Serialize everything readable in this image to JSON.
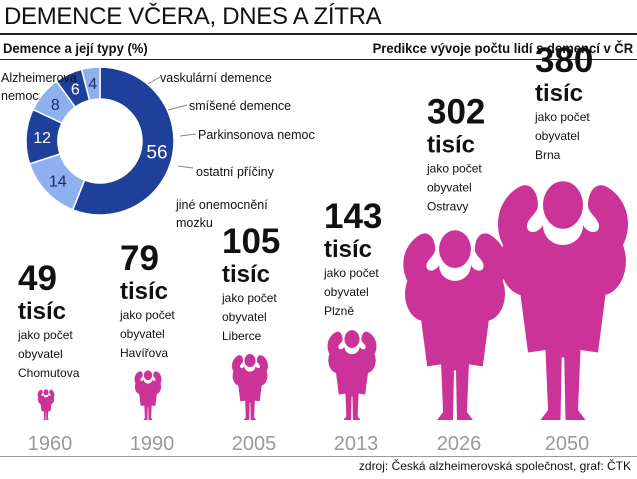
{
  "header": {
    "title": "DEMENCE VČERA, DNES A ZÍTRA",
    "left_subtitle": "Demence a její typy (%)",
    "right_subtitle": "Predikce vývoje počtu lidí s demencí v ČR"
  },
  "colors": {
    "dark_blue": "#1e3f9a",
    "light_blue": "#8fb0ee",
    "magenta": "#cc3399",
    "year_gray": "#999999",
    "leader_gray": "#888888"
  },
  "chart_data": [
    {
      "type": "pie",
      "title": "Demence a její typy (%)",
      "donut": true,
      "categories": [
        "Alzheimerova nemoc",
        "vaskulární demence",
        "smíšené demence",
        "Parkinsonova nemoc",
        "ostatní příčiny",
        "jiné onemocnění mozku"
      ],
      "values": [
        56,
        14,
        12,
        8,
        6,
        4
      ],
      "slice_colors": [
        "#1e3f9a",
        "#8fb0ee",
        "#1e3f9a",
        "#8fb0ee",
        "#1e3f9a",
        "#8fb0ee"
      ],
      "labels": [
        "Alzheimerova\nnemoc",
        "vaskulární demence",
        "smíšené demence",
        "Parkinsonova nemoc",
        "ostatní příčiny",
        "jiné onemocnění\nmozku"
      ]
    },
    {
      "type": "bar",
      "title": "Predikce vývoje počtu lidí s demencí v ČR",
      "categories": [
        "1960",
        "1990",
        "2005",
        "2013",
        "2026",
        "2050"
      ],
      "values": [
        49,
        79,
        105,
        143,
        302,
        380
      ],
      "unit": "tisíc",
      "descriptions": [
        "jako počet\nobyvatel\nChomutova",
        "jako počet\nobyvatel\nHavířova",
        "jako počet\nobyvatel\nLiberce",
        "jako počet\nobyvatel\nPlzně",
        "jako počet\nobyvatel\nOstravy",
        "jako počet\nobyvatel\nBrna"
      ],
      "marker": "human figure",
      "marker_color": "#cc3399"
    }
  ],
  "source": "zdroj: Česká alzheimerovská společnost, graf: ČTK"
}
